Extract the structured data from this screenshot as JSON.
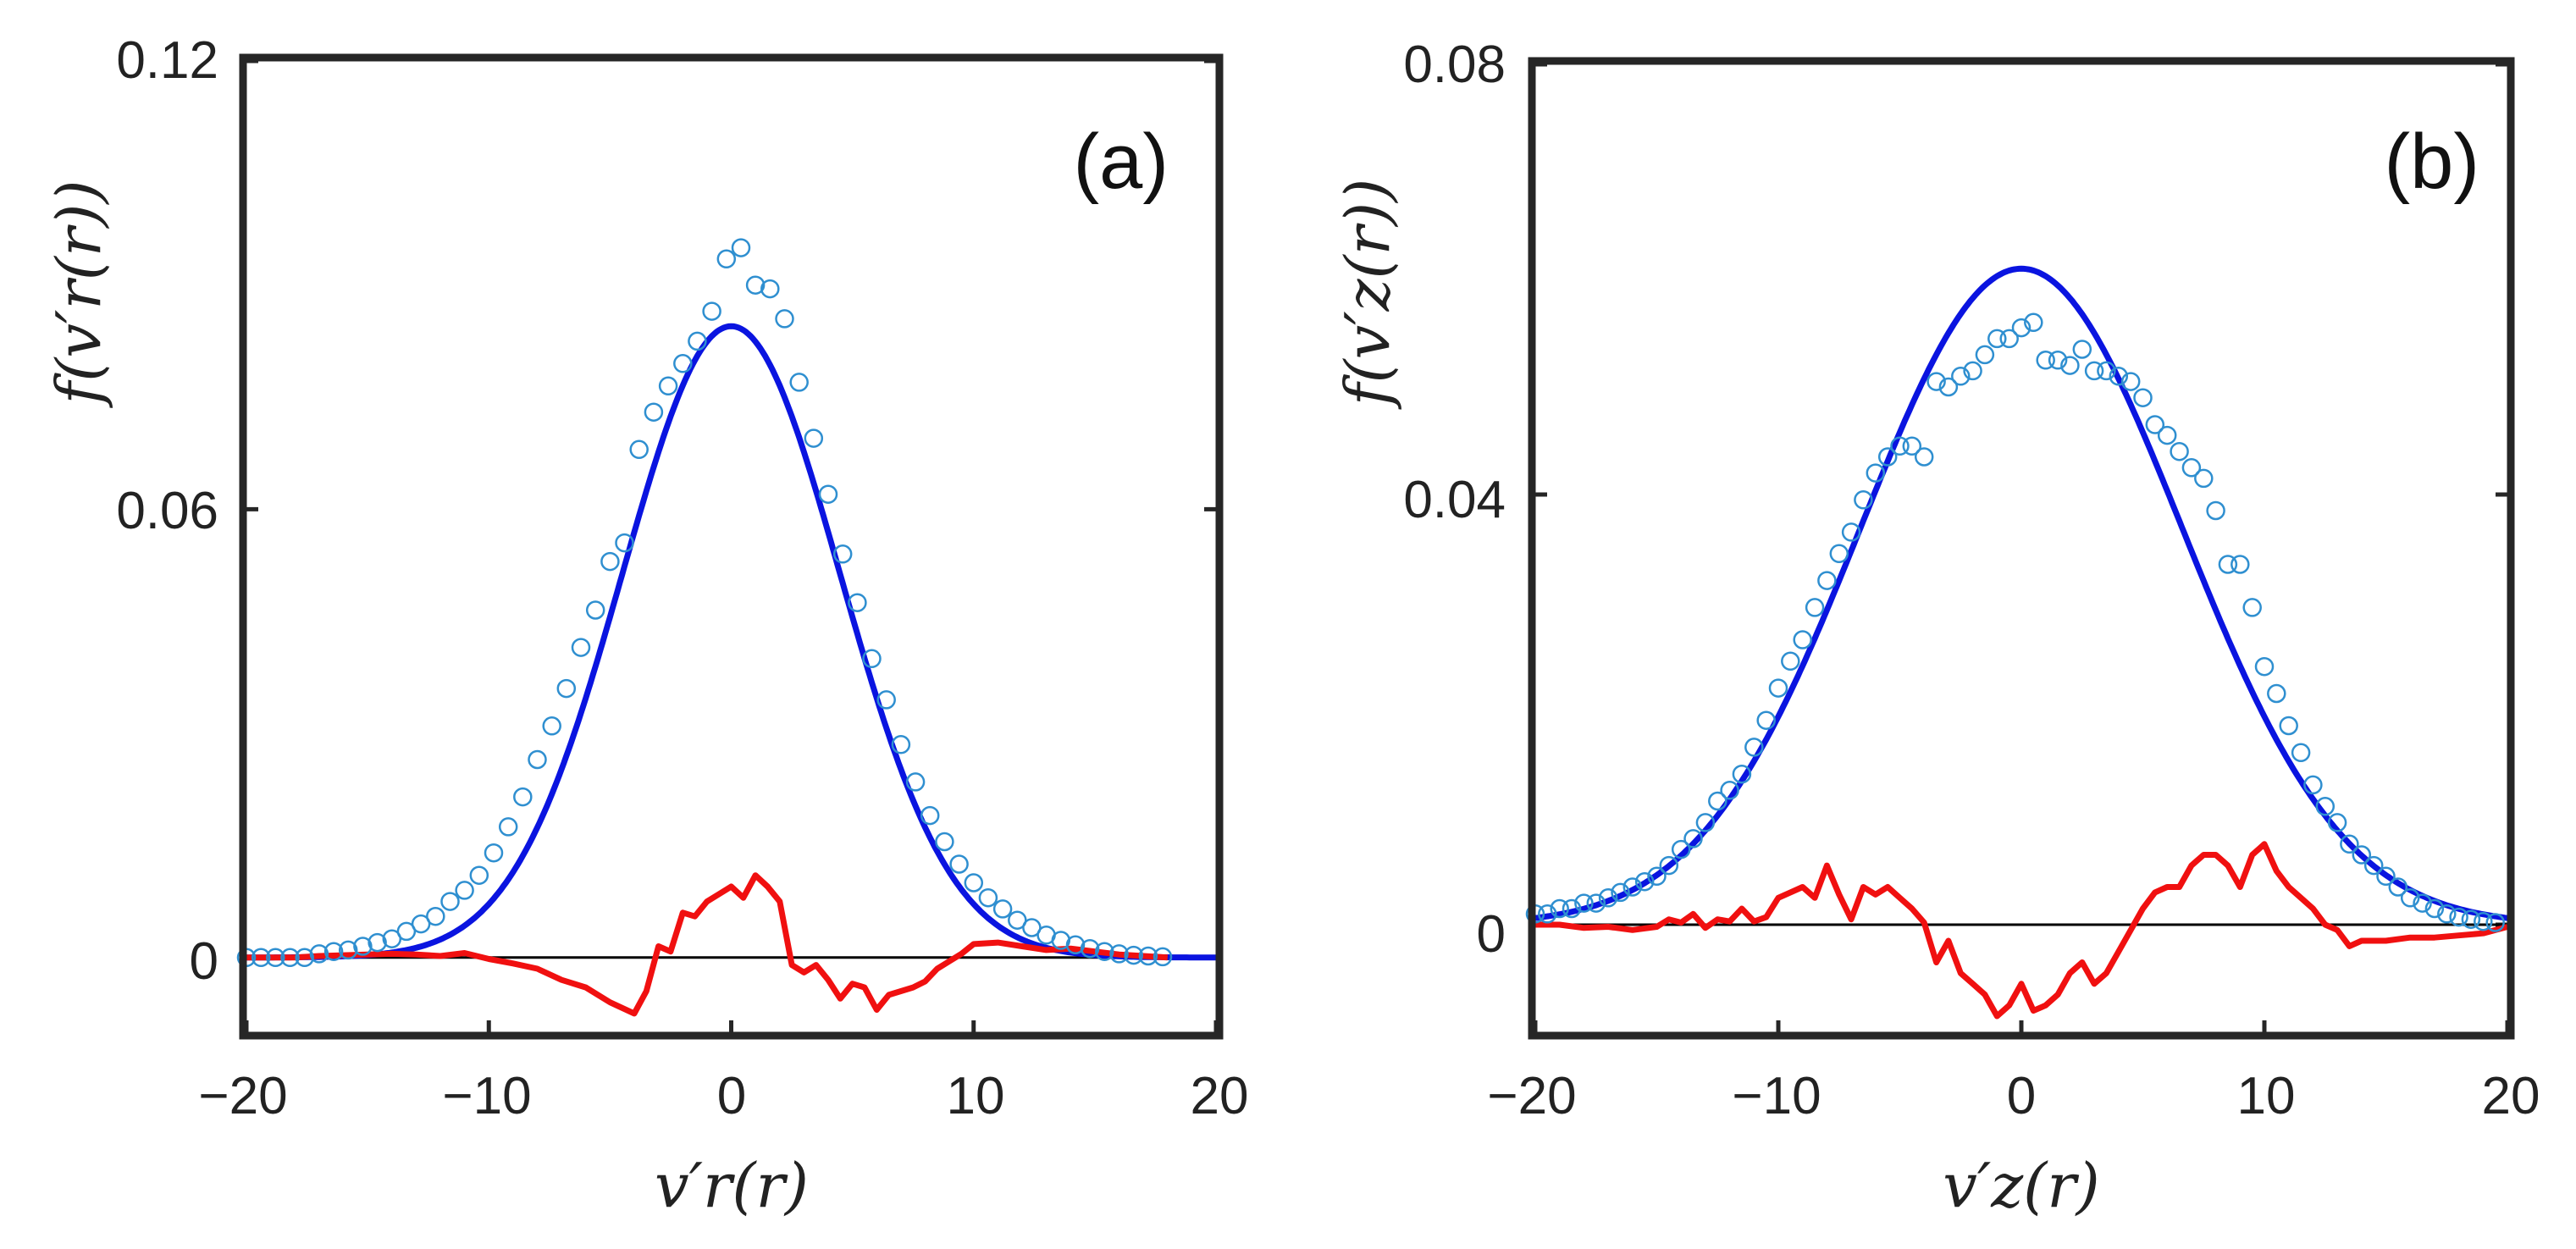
{
  "chart_data": [
    {
      "panel_label": "(a)",
      "type": "line",
      "xlabel": "v′r(r)",
      "ylabel": "f(v′r(r))",
      "xlim": [
        -20,
        20
      ],
      "ylim": [
        -0.01,
        0.12
      ],
      "xticks": [
        -20,
        -10,
        0,
        10,
        20
      ],
      "xtick_labels": [
        "−20",
        "−10",
        "0",
        "10",
        "20"
      ],
      "yticks": [
        0,
        0.06,
        0.12
      ],
      "ytick_labels": [
        "0",
        "0.06",
        "0.12"
      ],
      "grid": false,
      "colors": {
        "markers": "#2f8fd0",
        "fit": "#0a14e0",
        "difference": "#f01010",
        "zero_line": "#000000",
        "axes": "#262626"
      },
      "fit": {
        "mean": 0.0,
        "sigma": 4.5,
        "peak": 0.0845
      },
      "markers_x": [
        -20.0,
        -19.4,
        -18.8,
        -18.2,
        -17.6,
        -17.0,
        -16.4,
        -15.8,
        -15.2,
        -14.6,
        -14.0,
        -13.4,
        -12.8,
        -12.2,
        -11.6,
        -11.0,
        -10.4,
        -9.8,
        -9.2,
        -8.6,
        -8.0,
        -7.4,
        -6.8,
        -6.2,
        -5.6,
        -5.0,
        -4.4,
        -3.8,
        -3.2,
        -2.6,
        -2.0,
        -1.4,
        -0.8,
        -0.2,
        0.4,
        1.0,
        1.6,
        2.2,
        2.8,
        3.4,
        4.0,
        4.6,
        5.2,
        5.8,
        6.4,
        7.0,
        7.6,
        8.2,
        8.8,
        9.4,
        10.0,
        10.6,
        11.2,
        11.8,
        12.4,
        13.0,
        13.6,
        14.2,
        14.8,
        15.4,
        16.0,
        16.6,
        17.2,
        17.8
      ],
      "markers_y": [
        0.0,
        0.0,
        0.0,
        0.0,
        0.0,
        0.0005,
        0.0008,
        0.001,
        0.0015,
        0.002,
        0.0025,
        0.0035,
        0.0045,
        0.0055,
        0.0075,
        0.009,
        0.011,
        0.014,
        0.0175,
        0.0215,
        0.0265,
        0.031,
        0.036,
        0.0415,
        0.0465,
        0.053,
        0.0555,
        0.068,
        0.073,
        0.0765,
        0.0795,
        0.0825,
        0.0865,
        0.0935,
        0.095,
        0.09,
        0.0895,
        0.0855,
        0.077,
        0.0695,
        0.062,
        0.054,
        0.0475,
        0.04,
        0.0345,
        0.0285,
        0.0235,
        0.019,
        0.0155,
        0.0125,
        0.01,
        0.008,
        0.0065,
        0.005,
        0.004,
        0.003,
        0.0023,
        0.0017,
        0.0012,
        0.0008,
        0.0005,
        0.0003,
        0.0002,
        0.0001
      ],
      "difference_x": [
        -20,
        -19,
        -18,
        -17,
        -16,
        -15,
        -14,
        -13,
        -12,
        -11,
        -10,
        -9,
        -8,
        -7,
        -6,
        -5,
        -4,
        -3.5,
        -3,
        -2.5,
        -2,
        -1.5,
        -1,
        -0.5,
        0,
        0.5,
        1,
        1.5,
        2,
        2.5,
        3,
        3.5,
        4,
        4.5,
        5,
        5.5,
        6,
        6.5,
        7,
        7.5,
        8,
        8.5,
        9,
        9.5,
        10,
        11,
        12,
        13,
        14,
        15,
        16,
        17,
        18
      ],
      "difference_y": [
        0,
        0,
        0,
        0.0002,
        0.0003,
        0.0004,
        0.0005,
        0.0004,
        0.0002,
        0.0006,
        -0.0002,
        -0.0008,
        -0.0015,
        -0.003,
        -0.004,
        -0.006,
        -0.0075,
        -0.0045,
        0.0015,
        0.0008,
        0.006,
        0.0055,
        0.0075,
        0.0085,
        0.0095,
        0.008,
        0.011,
        0.0095,
        0.0075,
        -0.001,
        -0.002,
        -0.001,
        -0.003,
        -0.0055,
        -0.0035,
        -0.004,
        -0.007,
        -0.005,
        -0.0045,
        -0.004,
        -0.0032,
        -0.0015,
        -0.0005,
        0.0005,
        0.0018,
        0.002,
        0.0015,
        0.001,
        0.0012,
        0.0008,
        0.0004,
        0.0002,
        0
      ]
    },
    {
      "panel_label": "(b)",
      "type": "line",
      "xlabel": "v′z(r)",
      "ylabel": "f(v′z(r))",
      "xlim": [
        -20,
        20
      ],
      "ylim": [
        -0.01,
        0.08
      ],
      "xticks": [
        -20,
        -10,
        0,
        10,
        20
      ],
      "xtick_labels": [
        "−20",
        "−10",
        "0",
        "10",
        "20"
      ],
      "yticks": [
        0,
        0.04,
        0.08
      ],
      "ytick_labels": [
        "0",
        "0.04",
        "0.08"
      ],
      "grid": false,
      "colors": {
        "markers": "#2f8fd0",
        "fit": "#0a14e0",
        "difference": "#f01010",
        "zero_line": "#000000",
        "axes": "#262626"
      },
      "fit": {
        "mean": 0.0,
        "sigma": 6.6,
        "peak": 0.061
      },
      "markers_x": [
        -20.0,
        -19.5,
        -19.0,
        -18.5,
        -18.0,
        -17.5,
        -17.0,
        -16.5,
        -16.0,
        -15.5,
        -15.0,
        -14.5,
        -14.0,
        -13.5,
        -13.0,
        -12.5,
        -12.0,
        -11.5,
        -11.0,
        -10.5,
        -10.0,
        -9.5,
        -9.0,
        -8.5,
        -8.0,
        -7.5,
        -7.0,
        -6.5,
        -6.0,
        -5.5,
        -5.0,
        -4.5,
        -4.0,
        -3.5,
        -3.0,
        -2.5,
        -2.0,
        -1.5,
        -1.0,
        -0.5,
        0.0,
        0.5,
        1.0,
        1.5,
        2.0,
        2.5,
        3.0,
        3.5,
        4.0,
        4.5,
        5.0,
        5.5,
        6.0,
        6.5,
        7.0,
        7.5,
        8.0,
        8.5,
        9.0,
        9.5,
        10.0,
        10.5,
        11.0,
        11.5,
        12.0,
        12.5,
        13.0,
        13.5,
        14.0,
        14.5,
        15.0,
        15.5,
        16.0,
        16.5,
        17.0,
        17.5,
        18.0,
        18.5,
        19.0,
        19.5
      ],
      "markers_y": [
        0.001,
        0.001,
        0.0015,
        0.0015,
        0.002,
        0.002,
        0.0025,
        0.003,
        0.0035,
        0.004,
        0.0045,
        0.0055,
        0.007,
        0.008,
        0.0095,
        0.0115,
        0.0125,
        0.014,
        0.0165,
        0.019,
        0.022,
        0.0245,
        0.0265,
        0.0295,
        0.032,
        0.0345,
        0.0365,
        0.0395,
        0.042,
        0.0435,
        0.0445,
        0.0445,
        0.0435,
        0.0505,
        0.05,
        0.051,
        0.0515,
        0.053,
        0.0545,
        0.0545,
        0.0555,
        0.056,
        0.0525,
        0.0525,
        0.052,
        0.0535,
        0.0515,
        0.0515,
        0.051,
        0.0505,
        0.049,
        0.0465,
        0.0455,
        0.044,
        0.0425,
        0.0415,
        0.0385,
        0.0335,
        0.0335,
        0.0295,
        0.024,
        0.0215,
        0.0185,
        0.016,
        0.013,
        0.011,
        0.0095,
        0.0075,
        0.0065,
        0.0055,
        0.0045,
        0.0035,
        0.0025,
        0.002,
        0.0015,
        0.001,
        0.0007,
        0.0005,
        0.0003,
        0.0002
      ],
      "difference_x": [
        -20,
        -19,
        -18,
        -17,
        -16,
        -15,
        -14.5,
        -14,
        -13.5,
        -13,
        -12.5,
        -12,
        -11.5,
        -11,
        -10.5,
        -10,
        -9.5,
        -9,
        -8.5,
        -8,
        -7.5,
        -7,
        -6.5,
        -6,
        -5.5,
        -5,
        -4.5,
        -4,
        -3.5,
        -3,
        -2.5,
        -2,
        -1.5,
        -1,
        -0.5,
        0,
        0.5,
        1,
        1.5,
        2,
        2.5,
        3,
        3.5,
        4,
        4.5,
        5,
        5.5,
        6,
        6.5,
        7,
        7.5,
        8,
        8.5,
        9,
        9.5,
        10,
        10.5,
        11,
        11.5,
        12,
        12.5,
        13,
        13.5,
        14,
        15,
        16,
        17,
        18,
        19,
        20
      ],
      "difference_y": [
        0,
        0,
        -0.0003,
        -0.0002,
        -0.0005,
        -0.0002,
        0.0005,
        0.0002,
        0.001,
        -0.0003,
        0.0005,
        0.0003,
        0.0015,
        0.0003,
        0.0007,
        0.0025,
        0.003,
        0.0035,
        0.0025,
        0.0055,
        0.0028,
        0.0005,
        0.0035,
        0.0028,
        0.0035,
        0.0025,
        0.0015,
        0.0002,
        -0.0035,
        -0.0015,
        -0.0045,
        -0.0055,
        -0.0065,
        -0.0085,
        -0.0075,
        -0.0055,
        -0.008,
        -0.0075,
        -0.0065,
        -0.0045,
        -0.0035,
        -0.0055,
        -0.0045,
        -0.0025,
        -0.0005,
        0.0015,
        0.003,
        0.0035,
        0.0035,
        0.0055,
        0.0065,
        0.0065,
        0.0055,
        0.0035,
        0.0065,
        0.0075,
        0.005,
        0.0035,
        0.0025,
        0.0015,
        0.0,
        -0.0005,
        -0.002,
        -0.0015,
        -0.0015,
        -0.0012,
        -0.0012,
        -0.001,
        -0.0008,
        -0.0002
      ]
    }
  ]
}
